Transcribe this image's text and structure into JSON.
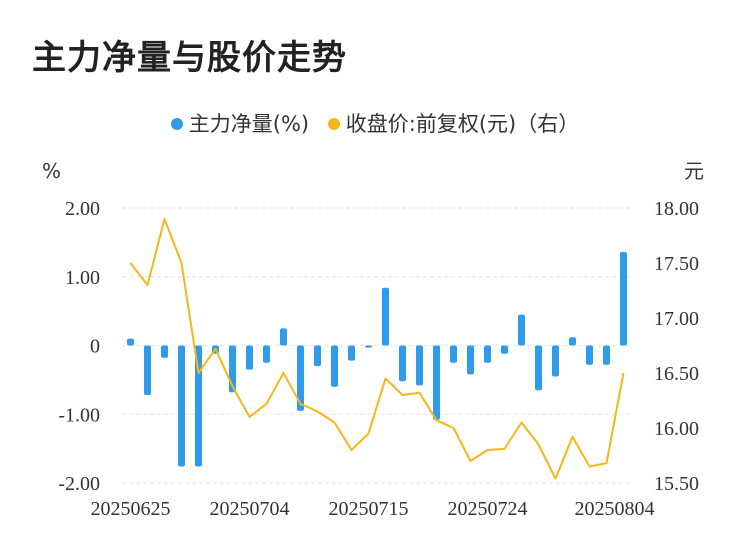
{
  "title": "主力净量与股价走势",
  "chart_data": {
    "type": "bar+line",
    "series": [
      {
        "name": "主力净量(%)",
        "type": "bar",
        "axis": "left",
        "color": "#2f9ceb",
        "values": [
          0.1,
          -0.72,
          -0.18,
          -1.76,
          -1.76,
          -0.12,
          -0.68,
          -0.35,
          -0.25,
          0.25,
          -0.95,
          -0.3,
          -0.6,
          -0.22,
          -0.03,
          0.84,
          -0.52,
          -0.58,
          -1.08,
          -0.25,
          -0.42,
          -0.25,
          -0.12,
          0.45,
          -0.65,
          -0.45,
          0.12,
          -0.28,
          -0.28,
          1.36
        ]
      },
      {
        "name": "收盘价:前复权(元)（右）",
        "type": "line",
        "axis": "right",
        "color": "#f5b719",
        "values": [
          17.5,
          17.3,
          17.9,
          17.5,
          16.5,
          16.72,
          16.38,
          16.1,
          16.22,
          16.5,
          16.22,
          16.15,
          16.05,
          15.8,
          15.95,
          16.45,
          16.3,
          16.32,
          16.07,
          16.0,
          15.7,
          15.8,
          15.81,
          16.05,
          15.85,
          15.54,
          15.92,
          15.65,
          15.68,
          16.5
        ]
      }
    ],
    "x_tick_labels": [
      "20250625",
      "20250704",
      "20250715",
      "20250724",
      "20250804"
    ],
    "y_left": {
      "unit": "%",
      "ticks": [
        "2.00",
        "1.00",
        "0",
        "-1.00",
        "-2.00"
      ],
      "range": [
        -2,
        2
      ]
    },
    "y_right": {
      "unit": "元",
      "ticks": [
        "18.00",
        "17.50",
        "17.00",
        "16.50",
        "16.00",
        "15.50"
      ],
      "range": [
        15.5,
        18
      ]
    },
    "grid": true,
    "legend_position": "top"
  }
}
